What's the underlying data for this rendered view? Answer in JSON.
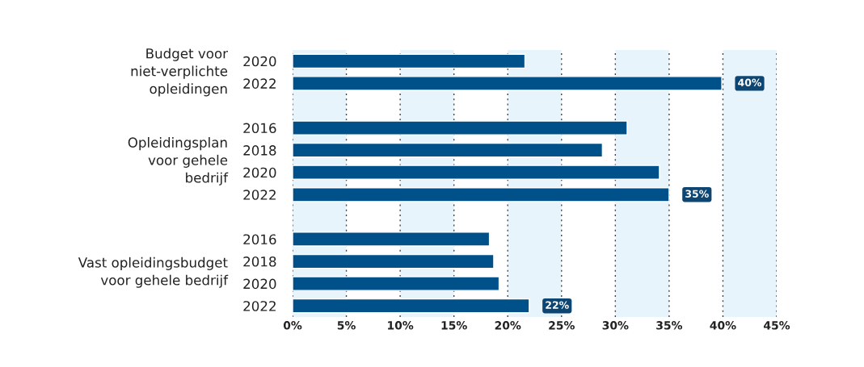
{
  "chart_data": {
    "type": "bar",
    "orientation": "horizontal",
    "categories": [
      "2020",
      "2022",
      null,
      "2016",
      "2018",
      "2020",
      "2022",
      null,
      "2016",
      "2018",
      "2020",
      "2022"
    ],
    "values": [
      21.6,
      39.9,
      null,
      31.1,
      28.8,
      34.1,
      35,
      null,
      18.3,
      18.7,
      19.2,
      22
    ],
    "value_labels": [
      null,
      "40%",
      null,
      null,
      null,
      null,
      "35%",
      null,
      null,
      null,
      null,
      "22%"
    ],
    "color": "#00508a",
    "annotations": [
      "Budget voor\nniet-verplichte\nopleidingen",
      "Opleidingsplan\nvoor gehele\nbedrijf",
      "Vast opleidingsbudget\nvoor gehele bedrijf"
    ],
    "xlim": [
      0,
      45
    ],
    "xticks": [
      {
        "value": 0,
        "label": "0%"
      },
      {
        "value": 5,
        "label": "5%"
      },
      {
        "value": 10,
        "label": "10%"
      },
      {
        "value": 15,
        "label": "15%"
      },
      {
        "value": 20,
        "label": "20%"
      },
      {
        "value": 25,
        "label": "25%"
      },
      {
        "value": 30,
        "label": "30%"
      },
      {
        "value": 35,
        "label": "35%"
      },
      {
        "value": 40,
        "label": "40%"
      },
      {
        "value": 45,
        "label": "45%"
      }
    ],
    "bands": [
      {
        "axis": "x",
        "from": 0,
        "to": 5,
        "color": "#e8f4fc"
      },
      {
        "axis": "x",
        "from": 10,
        "to": 15,
        "color": "#e8f4fc"
      },
      {
        "axis": "x",
        "from": 20,
        "to": 25,
        "color": "#e8f4fc"
      },
      {
        "axis": "x",
        "from": 30,
        "to": 35,
        "color": "#e8f4fc"
      },
      {
        "axis": "x",
        "from": 40,
        "to": 45,
        "color": "#e8f4fc"
      }
    ],
    "grid": "x",
    "legend": false
  }
}
